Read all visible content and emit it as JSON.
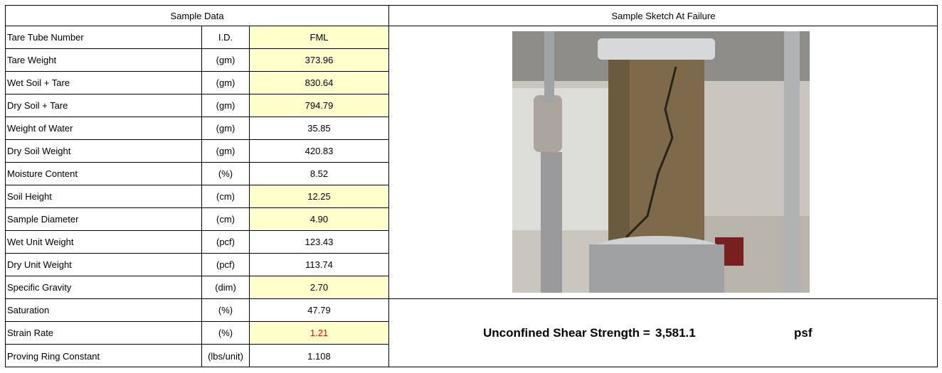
{
  "header": {
    "left_title": "Sample Data",
    "right_title": "Sample Sketch At Failure"
  },
  "table": {
    "rows": [
      {
        "label": "Tare Tube Number",
        "unit": "I.D.",
        "value": "FML",
        "highlight": true
      },
      {
        "label": "Tare Weight",
        "unit": "(gm)",
        "value": "373.96",
        "highlight": true
      },
      {
        "label": "Wet Soil + Tare",
        "unit": "(gm)",
        "value": "830.64",
        "highlight": true
      },
      {
        "label": "Dry Soil + Tare",
        "unit": "(gm)",
        "value": "794.79",
        "highlight": true
      },
      {
        "label": "Weight of Water",
        "unit": "(gm)",
        "value": "35.85",
        "highlight": false
      },
      {
        "label": "Dry Soil Weight",
        "unit": "(gm)",
        "value": "420.83",
        "highlight": false
      },
      {
        "label": "Moisture Content",
        "unit": "(%)",
        "value": "8.52",
        "highlight": false
      },
      {
        "label": "Soil Height",
        "unit": "(cm)",
        "value": "12.25",
        "highlight": true
      },
      {
        "label": "Sample Diameter",
        "unit": "(cm)",
        "value": "4.90",
        "highlight": true
      },
      {
        "label": "Wet Unit Weight",
        "unit": "(pcf)",
        "value": "123.43",
        "highlight": false
      },
      {
        "label": "Dry Unit Weight",
        "unit": "(pcf)",
        "value": "113.74",
        "highlight": false
      },
      {
        "label": "Specific Gravity",
        "unit": "(dim)",
        "value": "2.70",
        "highlight": true
      },
      {
        "label": "Saturation",
        "unit": "(%)",
        "value": "47.79",
        "highlight": false
      },
      {
        "label": "Strain Rate",
        "unit": "(%)",
        "value": "1.21",
        "highlight": true,
        "value_color": "#ff0000"
      },
      {
        "label": "Proving Ring Constant",
        "unit": "(lbs/unit)",
        "value": "1.108",
        "highlight": false
      }
    ]
  },
  "result": {
    "label": "Unconfined Shear Strength =",
    "value": "3,581.1",
    "unit": "psf"
  }
}
